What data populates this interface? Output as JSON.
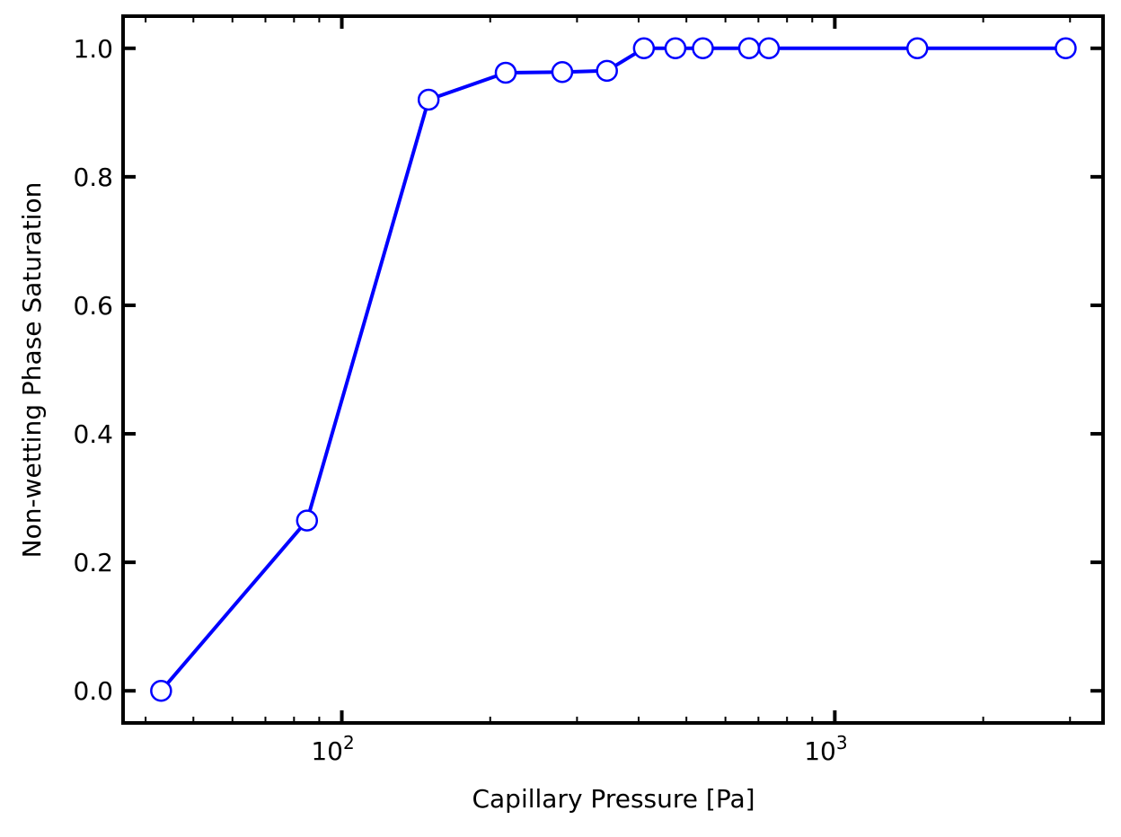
{
  "chart_data": {
    "type": "line",
    "title": "",
    "xlabel": "Capillary Pressure [Pa]",
    "ylabel": "Non-wetting Phase Saturation",
    "x_scale": "log",
    "xlim": [
      36,
      3500
    ],
    "ylim": [
      -0.05,
      1.05
    ],
    "x_ticks": [
      {
        "value": 100,
        "base": "10",
        "exp": "2"
      },
      {
        "value": 1000,
        "base": "10",
        "exp": "3"
      }
    ],
    "y_ticks": [
      {
        "value": 0.0,
        "label": "0.0"
      },
      {
        "value": 0.2,
        "label": "0.2"
      },
      {
        "value": 0.4,
        "label": "0.4"
      },
      {
        "value": 0.6,
        "label": "0.6"
      },
      {
        "value": 0.8,
        "label": "0.8"
      },
      {
        "value": 1.0,
        "label": "1.0"
      }
    ],
    "grid": false,
    "legend": "none",
    "series": [
      {
        "color": "#0000ff",
        "marker": "open-circle",
        "x": [
          43,
          85,
          150,
          215,
          280,
          345,
          410,
          475,
          540,
          670,
          735,
          1470,
          2940
        ],
        "y": [
          0.0,
          0.265,
          0.92,
          0.962,
          0.963,
          0.965,
          1.0,
          1.0,
          1.0,
          1.0,
          1.0,
          1.0,
          1.0
        ]
      }
    ]
  }
}
